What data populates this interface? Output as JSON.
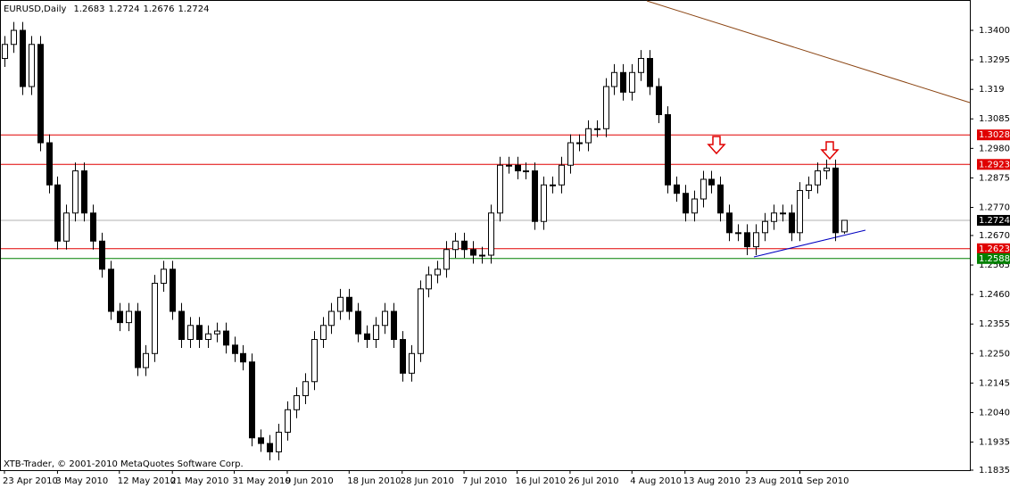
{
  "chart_data": {
    "type": "candlestick",
    "title": "EURUSD,Daily",
    "footer": "XTB-Trader, © 2001-2010 MetaQuotes Software Corp.",
    "categories": [
      "23 Apr 2010",
      null,
      null,
      null,
      null,
      null,
      "3 May 2010",
      null,
      null,
      null,
      null,
      null,
      null,
      "12 May 2010",
      null,
      null,
      null,
      null,
      null,
      "21 May 2010",
      null,
      null,
      null,
      null,
      null,
      null,
      "31 May 2010",
      null,
      null,
      null,
      null,
      null,
      "9 Jun 2010",
      null,
      null,
      null,
      null,
      null,
      null,
      "18 Jun 2010",
      null,
      null,
      null,
      null,
      null,
      "28 Jun 2010",
      null,
      null,
      null,
      null,
      null,
      null,
      "7 Jul 2010",
      null,
      null,
      null,
      null,
      null,
      "16 Jul 2010",
      null,
      null,
      null,
      null,
      null,
      "26 Jul 2010",
      null,
      null,
      null,
      null,
      null,
      null,
      "4 Aug 2010",
      null,
      null,
      null,
      null,
      null,
      "13 Aug 2010",
      null,
      null,
      null,
      null,
      null,
      null,
      "23 Aug 2010",
      null,
      null,
      null,
      null,
      null,
      "1 Sep 2010",
      null,
      null,
      null,
      null,
      null
    ],
    "open": [
      1.33,
      1.335,
      1.34,
      1.32,
      1.335,
      1.3,
      1.285,
      1.265,
      1.275,
      1.29,
      1.275,
      1.265,
      1.255,
      1.24,
      1.236,
      1.24,
      1.22,
      1.225,
      1.25,
      1.255,
      1.24,
      1.23,
      1.235,
      1.23,
      1.232,
      1.233,
      1.228,
      1.225,
      1.222,
      1.195,
      1.193,
      1.19,
      1.197,
      1.205,
      1.21,
      1.215,
      1.23,
      1.235,
      1.24,
      1.245,
      1.24,
      1.232,
      1.23,
      1.235,
      1.24,
      1.23,
      1.218,
      1.225,
      1.248,
      1.253,
      1.255,
      1.262,
      1.265,
      1.262,
      1.26,
      1.26,
      1.275,
      1.292,
      1.292,
      1.29,
      1.29,
      1.272,
      1.285,
      1.285,
      1.292,
      1.3,
      1.3,
      1.305,
      1.305,
      1.32,
      1.325,
      1.318,
      1.325,
      1.33,
      1.32,
      1.31,
      1.285,
      1.282,
      1.275,
      1.28,
      1.287,
      1.285,
      1.275,
      1.268,
      1.268,
      1.263,
      1.268,
      1.272,
      1.275,
      1.275,
      1.268,
      1.283,
      1.285,
      1.29,
      1.291,
      1.2683
    ],
    "high": [
      1.338,
      1.343,
      1.343,
      1.338,
      1.338,
      1.303,
      1.288,
      1.278,
      1.293,
      1.293,
      1.278,
      1.268,
      1.258,
      1.243,
      1.243,
      1.243,
      1.228,
      1.253,
      1.258,
      1.258,
      1.243,
      1.238,
      1.238,
      1.235,
      1.236,
      1.236,
      1.231,
      1.228,
      1.225,
      1.198,
      1.196,
      1.2,
      1.208,
      1.213,
      1.218,
      1.233,
      1.238,
      1.243,
      1.248,
      1.248,
      1.243,
      1.235,
      1.238,
      1.243,
      1.243,
      1.233,
      1.228,
      1.251,
      1.256,
      1.258,
      1.265,
      1.268,
      1.268,
      1.265,
      1.263,
      1.278,
      1.295,
      1.295,
      1.295,
      1.293,
      1.293,
      1.288,
      1.288,
      1.295,
      1.303,
      1.303,
      1.308,
      1.308,
      1.323,
      1.328,
      1.328,
      1.328,
      1.333,
      1.333,
      1.323,
      1.313,
      1.288,
      1.285,
      1.283,
      1.29,
      1.29,
      1.288,
      1.278,
      1.271,
      1.271,
      1.271,
      1.275,
      1.278,
      1.278,
      1.278,
      1.286,
      1.288,
      1.293,
      1.294,
      1.294,
      1.2724
    ],
    "low": [
      1.327,
      1.332,
      1.317,
      1.317,
      1.297,
      1.282,
      1.262,
      1.262,
      1.272,
      1.272,
      1.262,
      1.252,
      1.237,
      1.233,
      1.233,
      1.217,
      1.217,
      1.222,
      1.247,
      1.237,
      1.227,
      1.227,
      1.227,
      1.227,
      1.229,
      1.225,
      1.222,
      1.219,
      1.192,
      1.19,
      1.187,
      1.187,
      1.194,
      1.202,
      1.207,
      1.212,
      1.227,
      1.232,
      1.237,
      1.237,
      1.229,
      1.227,
      1.227,
      1.232,
      1.227,
      1.215,
      1.215,
      1.222,
      1.245,
      1.25,
      1.252,
      1.259,
      1.259,
      1.257,
      1.257,
      1.257,
      1.272,
      1.289,
      1.287,
      1.287,
      1.269,
      1.269,
      1.282,
      1.282,
      1.289,
      1.297,
      1.297,
      1.302,
      1.302,
      1.317,
      1.315,
      1.315,
      1.322,
      1.317,
      1.307,
      1.282,
      1.279,
      1.272,
      1.272,
      1.277,
      1.282,
      1.272,
      1.265,
      1.265,
      1.26,
      1.26,
      1.265,
      1.269,
      1.272,
      1.265,
      1.265,
      1.28,
      1.282,
      1.287,
      1.265,
      1.2676
    ],
    "close": [
      1.335,
      1.34,
      1.32,
      1.335,
      1.3,
      1.285,
      1.265,
      1.275,
      1.29,
      1.275,
      1.265,
      1.255,
      1.24,
      1.236,
      1.24,
      1.22,
      1.225,
      1.25,
      1.255,
      1.24,
      1.23,
      1.235,
      1.23,
      1.232,
      1.233,
      1.228,
      1.225,
      1.222,
      1.195,
      1.193,
      1.19,
      1.197,
      1.205,
      1.21,
      1.215,
      1.23,
      1.235,
      1.24,
      1.245,
      1.24,
      1.232,
      1.23,
      1.235,
      1.24,
      1.23,
      1.218,
      1.225,
      1.248,
      1.253,
      1.255,
      1.262,
      1.265,
      1.262,
      1.26,
      1.26,
      1.275,
      1.292,
      1.292,
      1.29,
      1.29,
      1.272,
      1.285,
      1.285,
      1.292,
      1.3,
      1.3,
      1.305,
      1.305,
      1.32,
      1.325,
      1.318,
      1.325,
      1.33,
      1.32,
      1.31,
      1.285,
      1.282,
      1.275,
      1.28,
      1.287,
      1.285,
      1.275,
      1.268,
      1.268,
      1.263,
      1.268,
      1.272,
      1.275,
      1.275,
      1.268,
      1.283,
      1.285,
      1.29,
      1.291,
      1.268,
      1.2724
    ],
    "ylim": [
      1.1835,
      1.3508
    ],
    "yticks": [
      {
        "value": 1.34,
        "label": "1.3400"
      },
      1.3295,
      1.319,
      1.3085,
      {
        "value": 1.298,
        "label": "1.2980"
      },
      1.2875,
      {
        "value": 1.277,
        "label": "1.2770"
      },
      {
        "value": 1.267,
        "label": "1.2670"
      },
      1.2565,
      {
        "value": 1.246,
        "label": "1.2460"
      },
      1.2355,
      {
        "value": 1.225,
        "label": "1.2250"
      },
      1.2145,
      {
        "value": 1.204,
        "label": "1.2040"
      },
      1.1935,
      1.1835
    ],
    "levels": [
      {
        "value": 1.3028,
        "color": "#e00000"
      },
      {
        "value": 1.2923,
        "color": "#e00000"
      },
      {
        "value": 1.2724,
        "color": "#000000"
      },
      {
        "value": 1.2623,
        "color": "#e00000"
      },
      {
        "value": 1.2588,
        "color": "#008000"
      }
    ],
    "bull_color": "#ffffff",
    "bear_color": "#000000"
  }
}
